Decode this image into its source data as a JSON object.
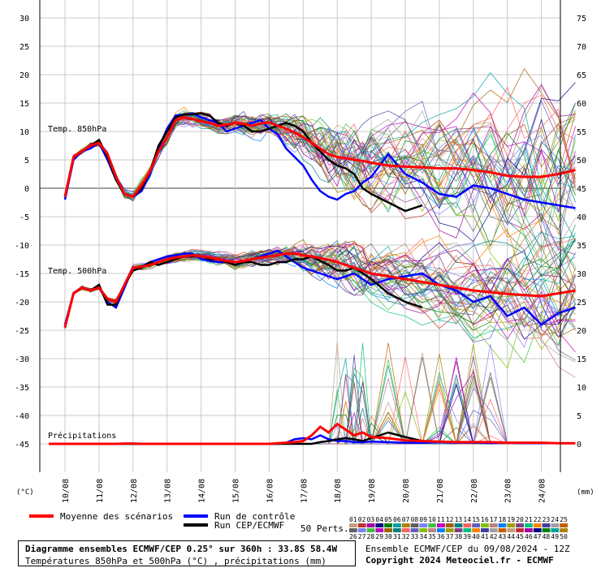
{
  "chart_data": {
    "type": "line",
    "x_labels": [
      "10/08",
      "11/08",
      "12/08",
      "13/08",
      "14/08",
      "15/08",
      "16/08",
      "17/08",
      "18/08",
      "19/08",
      "20/08",
      "21/08",
      "22/08",
      "23/08",
      "24/08"
    ],
    "left_axis": {
      "unit_label": "(°C)",
      "ticks": [
        30,
        25,
        20,
        15,
        10,
        5,
        0,
        -5,
        -10,
        -15,
        -20,
        -25,
        -30,
        -35,
        -40,
        -45
      ]
    },
    "right_axis": {
      "unit_label": "(mm)",
      "ticks": [
        75,
        70,
        65,
        60,
        55,
        50,
        45,
        40,
        35,
        30,
        25,
        20,
        15,
        10,
        5,
        0
      ]
    },
    "grid": true,
    "sections": {
      "t850": "Temp. 850hPa",
      "t500": "Temp. 500hPa",
      "precip": "Précipitations"
    },
    "x_days": [
      0.0,
      0.25,
      0.5,
      0.75,
      1.0,
      1.25,
      1.5,
      1.75,
      2.0,
      2.25,
      2.5,
      2.75,
      3.0,
      3.25,
      3.5,
      3.75,
      4.0,
      4.25,
      4.5,
      4.75,
      5.0,
      5.25,
      5.5,
      5.75,
      6.0,
      6.25,
      6.5,
      6.75,
      7.0,
      7.25,
      7.5,
      7.75,
      8.0,
      8.25,
      8.5,
      8.75,
      9.0,
      9.5,
      10.0,
      10.5,
      11.0,
      11.5,
      12.0,
      12.5,
      13.0,
      13.5,
      14.0,
      14.5,
      15.0
    ],
    "series": [
      {
        "name": "Moyenne des scénarios",
        "color": "#ff0000",
        "t850": [
          -1.5,
          5.5,
          6.5,
          7.5,
          8.0,
          6.0,
          2.0,
          -1.0,
          -1.5,
          0.5,
          3.0,
          6.5,
          9.0,
          12.0,
          12.5,
          12.2,
          11.8,
          11.5,
          11.0,
          11.2,
          11.5,
          11.3,
          11.0,
          11.4,
          11.6,
          11.0,
          10.5,
          9.8,
          9.0,
          8.0,
          7.0,
          6.0,
          5.5,
          5.3,
          5.0,
          4.8,
          4.5,
          4.0,
          3.8,
          3.7,
          3.5,
          3.5,
          3.2,
          2.8,
          2.2,
          2.0,
          2.0,
          2.5,
          3.2
        ],
        "t500": [
          -24.5,
          -18.5,
          -17.5,
          -18.0,
          -17.5,
          -19.5,
          -20.0,
          -17.0,
          -14.0,
          -13.8,
          -13.5,
          -13.0,
          -12.5,
          -12.2,
          -12.0,
          -11.8,
          -12.0,
          -12.2,
          -12.5,
          -12.8,
          -13.0,
          -12.8,
          -12.5,
          -12.2,
          -12.0,
          -11.8,
          -11.5,
          -11.5,
          -11.8,
          -12.0,
          -12.3,
          -12.6,
          -13.0,
          -13.5,
          -14.0,
          -14.5,
          -15.0,
          -15.5,
          -16.0,
          -16.5,
          -17.0,
          -17.5,
          -18.0,
          -18.3,
          -18.6,
          -18.8,
          -19.0,
          -18.5,
          -18.0
        ],
        "precip": [
          0,
          0,
          0,
          0,
          0,
          0,
          0,
          0.05,
          0.05,
          0,
          0,
          0,
          0,
          0,
          0,
          0,
          0,
          0,
          0,
          0,
          0,
          0,
          0,
          0,
          0,
          0.1,
          0.2,
          0.3,
          0.5,
          1.5,
          3.0,
          2.0,
          3.5,
          2.5,
          1.5,
          2.0,
          1.2,
          1.0,
          0.6,
          0.5,
          0.4,
          0.3,
          0.3,
          0.3,
          0.2,
          0.2,
          0.2,
          0.1,
          0.1
        ]
      },
      {
        "name": "Run de contrôle",
        "color": "#0000ff",
        "t850": [
          -2.0,
          5.0,
          6.5,
          7.0,
          8.0,
          5.0,
          1.5,
          -1.0,
          -1.5,
          -0.5,
          2.5,
          7.0,
          10.5,
          12.8,
          13.0,
          13.2,
          12.5,
          12.0,
          11.5,
          10.0,
          10.5,
          11.0,
          11.5,
          12.0,
          10.5,
          9.5,
          7.0,
          5.5,
          4.0,
          1.5,
          -0.5,
          -1.5,
          -2.0,
          -1.0,
          -0.5,
          1.0,
          2.0,
          6.0,
          2.5,
          1.0,
          -1.0,
          -1.5,
          0.5,
          0.0,
          -1.0,
          -2.0,
          -2.5,
          -3.0,
          -3.5
        ],
        "t500": [
          -24.0,
          -18.5,
          -17.5,
          -18.0,
          -17.5,
          -20.0,
          -21.0,
          -17.5,
          -14.0,
          -13.8,
          -13.0,
          -12.5,
          -12.0,
          -11.8,
          -11.5,
          -11.5,
          -12.5,
          -12.8,
          -13.0,
          -13.0,
          -13.0,
          -12.8,
          -12.5,
          -12.0,
          -11.5,
          -11.0,
          -12.0,
          -13.0,
          -14.0,
          -14.5,
          -15.0,
          -15.5,
          -16.0,
          -15.5,
          -15.0,
          -16.0,
          -17.0,
          -16.0,
          -15.5,
          -15.0,
          -17.0,
          -18.0,
          -20.0,
          -19.0,
          -22.5,
          -21.0,
          -24.0,
          -22.0,
          -21.0
        ],
        "precip": [
          0,
          0,
          0,
          0,
          0,
          0,
          0,
          0,
          0,
          0,
          0,
          0,
          0,
          0,
          0,
          0,
          0,
          0,
          0,
          0,
          0,
          0,
          0,
          0,
          0,
          0,
          0.2,
          0.8,
          1.0,
          0.8,
          1.5,
          0.8,
          0.5,
          0.5,
          0.3,
          0.3,
          0.4,
          0.3,
          0.2,
          0.2,
          0.3,
          0.2,
          0.2,
          0.1,
          0.2,
          0.1,
          0.1,
          0.1,
          0.1
        ]
      },
      {
        "name": "Run CEP/ECMWF",
        "color": "#000000",
        "t850": [
          -1.5,
          5.5,
          6.5,
          7.5,
          8.5,
          5.5,
          1.5,
          -1.0,
          -1.5,
          0.0,
          3.0,
          7.5,
          10.0,
          12.5,
          13.0,
          13.0,
          13.2,
          12.8,
          11.5,
          11.0,
          11.5,
          11.0,
          10.0,
          10.0,
          10.5,
          11.0,
          11.5,
          11.0,
          10.0,
          8.0,
          6.5,
          5.0,
          4.0,
          3.5,
          2.5,
          0.0,
          -1.0,
          -2.5,
          -4.0,
          -3.0
        ],
        "t500": [
          -24.5,
          -18.5,
          -17.5,
          -18.0,
          -17.0,
          -20.5,
          -20.5,
          -17.0,
          -14.5,
          -14.0,
          -13.0,
          -13.5,
          -13.0,
          -12.5,
          -12.0,
          -12.0,
          -12.0,
          -12.5,
          -12.5,
          -13.0,
          -13.5,
          -13.0,
          -13.0,
          -13.5,
          -13.5,
          -13.0,
          -13.0,
          -12.5,
          -12.5,
          -12.0,
          -12.8,
          -13.5,
          -14.5,
          -14.5,
          -14.0,
          -15.0,
          -16.0,
          -18.5,
          -20.0,
          -21.0
        ],
        "precip": [
          0,
          0,
          0,
          0,
          0,
          0,
          0,
          0,
          0,
          0,
          0,
          0,
          0,
          0,
          0,
          0,
          0,
          0,
          0,
          0,
          0,
          0,
          0,
          0,
          0,
          0,
          0,
          0,
          0,
          0,
          0.3,
          0.5,
          0.8,
          1.0,
          0.8,
          0.5,
          1.0,
          2.0,
          1.2,
          0.5
        ]
      }
    ],
    "legend": {
      "mean": "Moyenne des scénarios",
      "control": "Run de contrôle",
      "oper": "Run CEP/ECMWF",
      "perturbations_label": "50 Perts.",
      "pert_row1": [
        "01",
        "02",
        "03",
        "04",
        "05",
        "06",
        "07",
        "08",
        "09",
        "10",
        "11",
        "12",
        "13",
        "14",
        "15",
        "16",
        "17",
        "18",
        "19",
        "20",
        "21",
        "22",
        "23",
        "24",
        "25"
      ],
      "pert_row2": [
        "26",
        "27",
        "28",
        "29",
        "30",
        "31",
        "32",
        "33",
        "34",
        "35",
        "36",
        "37",
        "38",
        "39",
        "40",
        "41",
        "42",
        "43",
        "44",
        "45",
        "46",
        "47",
        "48",
        "49",
        "50"
      ],
      "pert_colors": [
        "#c0a080",
        "#c03030",
        "#a000a0",
        "#000080",
        "#008000",
        "#00a0a0",
        "#b08000",
        "#606060",
        "#8080ff",
        "#40c040",
        "#c000c0",
        "#a06000",
        "#008080",
        "#ff6060",
        "#6060c0",
        "#80c000",
        "#c08080",
        "#0080ff",
        "#a0a000",
        "#804080",
        "#00c080",
        "#ff8000",
        "#4040a0",
        "#a0a0a0",
        "#c06000"
      ]
    },
    "layout_stats": {}
  },
  "footer": {
    "title": "Diagramme ensembles ECMWF/CEP 0.25° sur 360h : 33.8S 58.4W",
    "subtitle": "Températures 850hPa et 500hPa (°C) , précipitations (mm)",
    "run_info": "Ensemble ECMWF/CEP du 09/08/2024 - 12Z",
    "copyright": "Copyright 2024 Meteociel.fr - ECMWF"
  }
}
